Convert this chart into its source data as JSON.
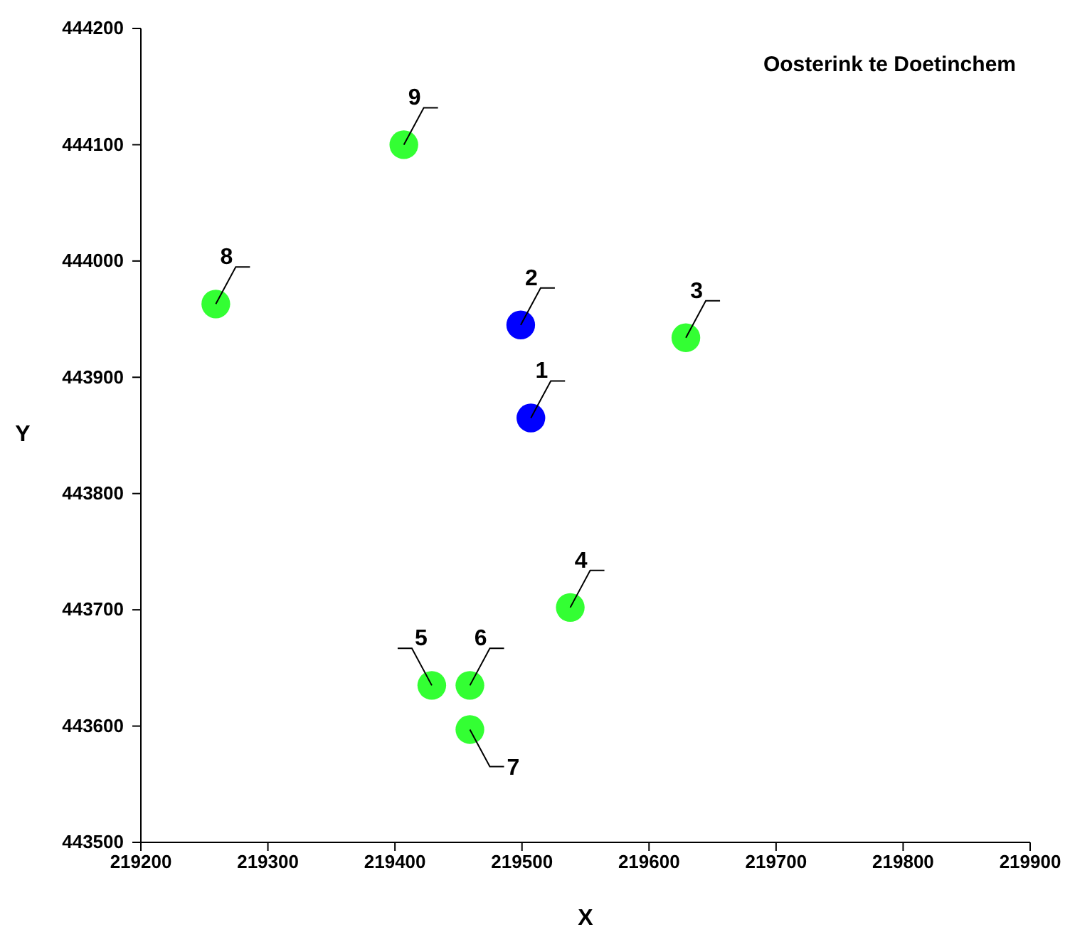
{
  "chart_data": {
    "type": "scatter",
    "title": "Oosterink te Doetinchem",
    "xlabel": "X",
    "ylabel": "Y",
    "xlim": [
      219200,
      219900
    ],
    "xticks": [
      219200,
      219300,
      219400,
      219500,
      219600,
      219700,
      219800,
      219900
    ],
    "ylim": [
      443500,
      444200
    ],
    "yticks": [
      443500,
      443600,
      443700,
      443800,
      443900,
      444000,
      444100,
      444200
    ],
    "grid": false,
    "marker": "circle",
    "series": [
      {
        "color": "#0000ff",
        "x": [
          219507,
          219499
        ],
        "values": [
          443865,
          443945
        ]
      },
      {
        "color": "#33ff33",
        "x": [
          219629,
          219538,
          219429,
          219459,
          219459,
          219259,
          219407
        ],
        "values": [
          443934,
          443702,
          443635,
          443635,
          443597,
          443963,
          444100
        ]
      }
    ],
    "annotations": [
      {
        "text": "1",
        "x": 219507,
        "y": 443865
      },
      {
        "text": "2",
        "x": 219499,
        "y": 443945
      },
      {
        "text": "3",
        "x": 219629,
        "y": 443934
      },
      {
        "text": "4",
        "x": 219538,
        "y": 443702
      },
      {
        "text": "5",
        "x": 219429,
        "y": 443635
      },
      {
        "text": "6",
        "x": 219459,
        "y": 443635
      },
      {
        "text": "7",
        "x": 219459,
        "y": 443597
      },
      {
        "text": "8",
        "x": 219259,
        "y": 443963
      },
      {
        "text": "9",
        "x": 219407,
        "y": 444100
      }
    ]
  }
}
